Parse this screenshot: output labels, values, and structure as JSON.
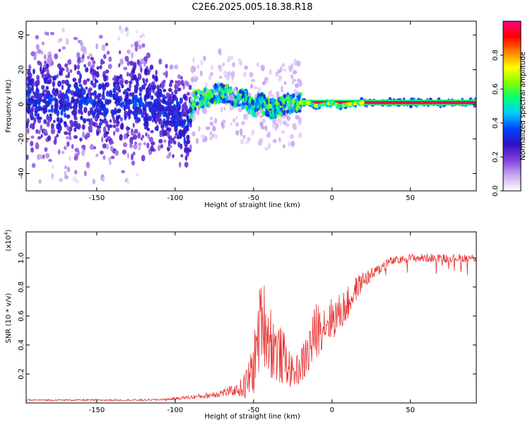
{
  "title": "C2E6.2025.005.18.38.R18",
  "colorbar": {
    "label": "Normalized spectral amplitude",
    "ticks": [
      "0.0",
      "0.2",
      "0.4",
      "0.6",
      "0.8"
    ],
    "tick_values": [
      0.0,
      0.2,
      0.4,
      0.6,
      0.8
    ],
    "range": [
      0,
      1
    ],
    "palette": [
      "#ffffff",
      "#c8a8f0",
      "#8040e0",
      "#3010c0",
      "#0040ff",
      "#00c8ff",
      "#00ff80",
      "#80ff00",
      "#ffff00",
      "#ff8000",
      "#ff0000",
      "#ff0080"
    ]
  },
  "chart_data": [
    {
      "type": "heatmap",
      "xlabel": "Height of straight line (km)",
      "ylabel": "Frequency (Hz)",
      "xlim": [
        -195,
        92
      ],
      "ylim": [
        -50,
        48
      ],
      "xticks": [
        -150,
        -100,
        -50,
        0,
        50
      ],
      "xtick_labels": [
        "-150",
        "-100",
        "-50",
        "0",
        "50"
      ],
      "yticks": [
        -40,
        -20,
        0,
        20,
        40
      ],
      "ytick_labels": [
        "-40",
        "-20",
        "0",
        "20",
        "40"
      ],
      "grid": false,
      "ridge": [
        {
          "x": -195,
          "y": 2
        },
        {
          "x": -150,
          "y": 1
        },
        {
          "x": -120,
          "y": 0
        },
        {
          "x": -100,
          "y": -5
        },
        {
          "x": -92,
          "y": -12
        },
        {
          "x": -88,
          "y": 2
        },
        {
          "x": -80,
          "y": 4
        },
        {
          "x": -70,
          "y": 7
        },
        {
          "x": -65,
          "y": 5
        },
        {
          "x": -55,
          "y": 3
        },
        {
          "x": -50,
          "y": -2
        },
        {
          "x": -45,
          "y": 1
        },
        {
          "x": -40,
          "y": -3
        },
        {
          "x": -35,
          "y": -2
        },
        {
          "x": -30,
          "y": 0
        },
        {
          "x": -25,
          "y": 1
        },
        {
          "x": -15,
          "y": 1
        },
        {
          "x": -10,
          "y": -1
        },
        {
          "x": 0,
          "y": 1
        },
        {
          "x": 5,
          "y": -1
        },
        {
          "x": 10,
          "y": 0
        },
        {
          "x": 20,
          "y": 1
        },
        {
          "x": 92,
          "y": 1
        }
      ]
    },
    {
      "type": "line",
      "xlabel": "Height of straight line (km)",
      "ylabel": "SNR (10 * v/v)",
      "y_multiplier": "(x10",
      "y_multiplier_exp": "4",
      "y_multiplier_close": ")",
      "xlim": [
        -195,
        92
      ],
      "ylim": [
        0,
        1.18
      ],
      "xticks": [
        -150,
        -100,
        -50,
        0,
        50
      ],
      "xtick_labels": [
        "-150",
        "-100",
        "-50",
        "0",
        "50"
      ],
      "yticks": [
        0.2,
        0.4,
        0.6,
        0.8,
        1.0
      ],
      "ytick_labels": [
        "0.2",
        "0.4",
        "0.6",
        "0.8",
        "1.0"
      ],
      "grid": false,
      "color": "#e83030",
      "envelope": {
        "x": [
          -195,
          -150,
          -120,
          -105,
          -100,
          -90,
          -80,
          -70,
          -60,
          -55,
          -50,
          -47,
          -45,
          -43,
          -40,
          -35,
          -30,
          -25,
          -20,
          -15,
          -10,
          -5,
          0,
          5,
          10,
          15,
          20,
          25,
          30,
          35,
          40,
          50,
          60,
          70,
          80,
          92
        ],
        "y": [
          0.02,
          0.02,
          0.02,
          0.025,
          0.03,
          0.04,
          0.05,
          0.07,
          0.09,
          0.12,
          0.25,
          0.45,
          0.6,
          0.55,
          0.45,
          0.35,
          0.3,
          0.2,
          0.25,
          0.35,
          0.5,
          0.55,
          0.58,
          0.62,
          0.68,
          0.78,
          0.85,
          0.88,
          0.92,
          0.97,
          0.98,
          1.0,
          1.0,
          1.0,
          1.0,
          1.0
        ]
      },
      "noise": {
        "x": [
          -195,
          -110,
          -95,
          -80,
          -60,
          -52,
          -47,
          -43,
          -40,
          -35,
          -30,
          -25,
          -20,
          -15,
          -10,
          -5,
          0,
          10,
          20,
          30,
          40,
          92
        ],
        "amp": [
          0.006,
          0.006,
          0.012,
          0.02,
          0.04,
          0.15,
          0.28,
          0.3,
          0.28,
          0.22,
          0.18,
          0.1,
          0.12,
          0.18,
          0.2,
          0.15,
          0.15,
          0.12,
          0.06,
          0.04,
          0.03,
          0.03
        ]
      }
    }
  ]
}
